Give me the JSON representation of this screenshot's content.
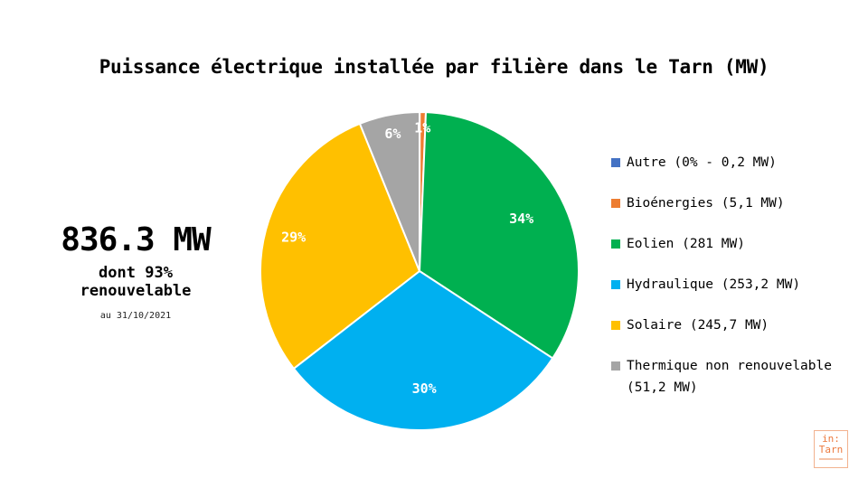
{
  "title": "Puissance électrique installée par filière dans le Tarn (MW)",
  "summary": {
    "total": "836.3 MW",
    "subtitle_line1": "dont 93%",
    "subtitle_line2": "renouvelable",
    "date": "au 31/10/2021"
  },
  "logo": {
    "line1": "in:",
    "line2": "Tarn"
  },
  "colors": {
    "autre": "#4472c4",
    "bioenergies": "#ed7d31",
    "eolien": "#00b050",
    "hydraulique": "#00b0f0",
    "solaire": "#ffc000",
    "thermique": "#a5a5a5"
  },
  "chart_data": {
    "type": "pie",
    "title": "Puissance électrique installée par filière dans le Tarn (MW)",
    "legend_position": "right",
    "slices": [
      {
        "label": "Autre",
        "legend": "Autre (0% - 0,2 MW)",
        "value": 0.2,
        "pct_label": "",
        "color": "#4472c4"
      },
      {
        "label": "Bioénergies",
        "legend": "Bioénergies (5,1 MW)",
        "value": 5.1,
        "pct_label": "1%",
        "color": "#ed7d31"
      },
      {
        "label": "Eolien",
        "legend": "Eolien (281 MW)",
        "value": 281,
        "pct_label": "34%",
        "color": "#00b050"
      },
      {
        "label": "Hydraulique",
        "legend": "Hydraulique (253,2 MW)",
        "value": 253.2,
        "pct_label": "30%",
        "color": "#00b0f0"
      },
      {
        "label": "Solaire",
        "legend": "Solaire (245,7 MW)",
        "value": 245.7,
        "pct_label": "29%",
        "color": "#ffc000"
      },
      {
        "label": "Thermique non renouvelable",
        "legend": "Thermique non renouvelable (51,2 MW)",
        "value": 51.2,
        "pct_label": "6%",
        "color": "#a5a5a5"
      }
    ]
  }
}
